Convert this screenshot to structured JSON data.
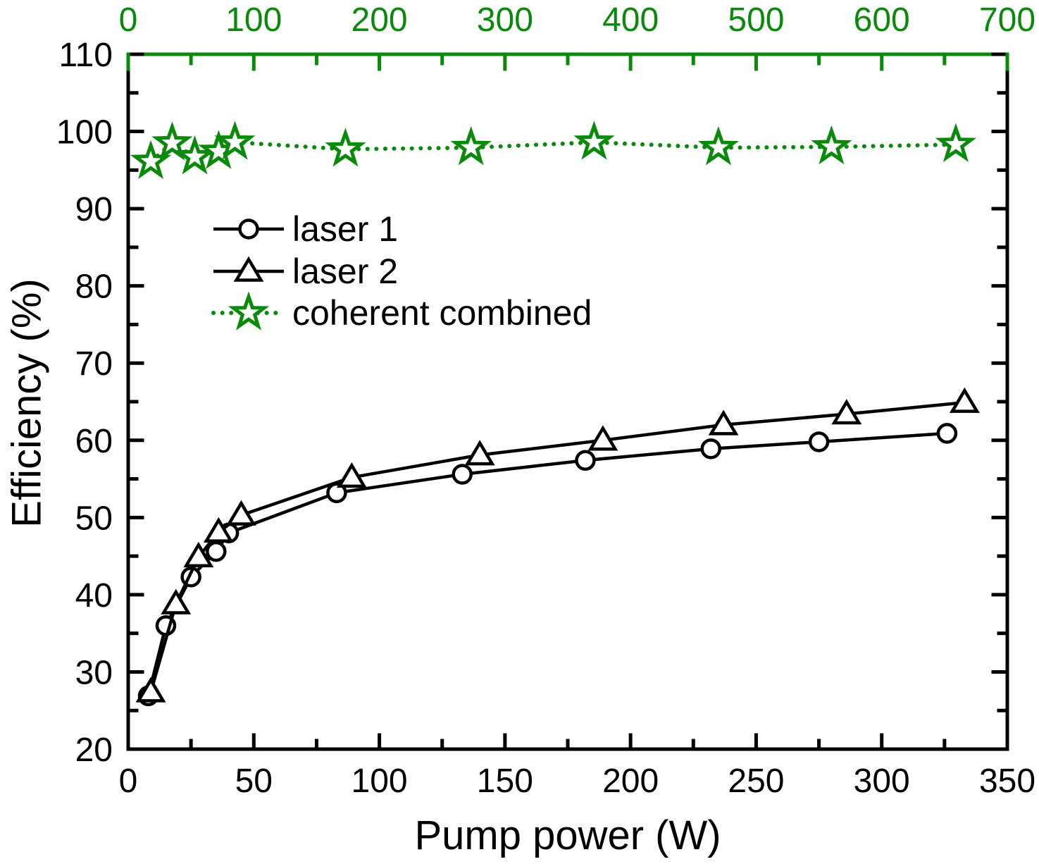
{
  "figure": {
    "background": "#ffffff",
    "black": "#000000",
    "green": "#0a8a0a"
  },
  "chart_data": {
    "type": "line",
    "title": "",
    "xlabel": "Pump power (W)",
    "ylabel": "Efficiency (%)",
    "grid": false,
    "axes": {
      "x_bottom": {
        "min": 0,
        "max": 350,
        "major_step": 50,
        "minor_step": 25,
        "tick_labels": [
          "0",
          "50",
          "100",
          "150",
          "200",
          "250",
          "300",
          "350"
        ],
        "color": "#000000"
      },
      "x_top": {
        "min": 0,
        "max": 700,
        "major_step": 100,
        "minor_step": 50,
        "tick_labels": [
          "0",
          "100",
          "200",
          "300",
          "400",
          "500",
          "600",
          "700"
        ],
        "color": "#0a8a0a"
      },
      "y": {
        "min": 20,
        "max": 110,
        "major_step": 10,
        "minor_step": 5,
        "tick_labels": [
          "20",
          "30",
          "40",
          "50",
          "60",
          "70",
          "80",
          "90",
          "100",
          "110"
        ],
        "color": "#000000"
      }
    },
    "legend": {
      "position": "inside-upper-left",
      "entries": [
        "laser 1",
        "laser 2",
        "coherent combined"
      ]
    },
    "series": [
      {
        "name": "laser 1",
        "axis": "bottom",
        "marker": "circle",
        "line": "solid",
        "color": "#000000",
        "x": [
          8,
          15,
          25,
          35,
          40,
          83,
          133,
          182,
          232,
          275,
          326
        ],
        "y": [
          26.9,
          36.0,
          42.3,
          45.6,
          48.0,
          53.2,
          55.6,
          57.4,
          58.9,
          59.8,
          60.9
        ]
      },
      {
        "name": "laser 2",
        "axis": "bottom",
        "marker": "triangle",
        "line": "solid",
        "color": "#000000",
        "x": [
          9,
          19,
          28,
          36,
          45,
          89,
          140,
          189,
          237,
          286,
          333
        ],
        "y": [
          27.4,
          38.8,
          44.9,
          48.1,
          50.3,
          55.2,
          58.1,
          60.0,
          62.0,
          63.4,
          64.9
        ]
      },
      {
        "name": "coherent combined",
        "axis": "top",
        "marker": "star",
        "line": "dotted",
        "color": "#0a8a0a",
        "x": [
          18,
          35,
          53,
          72,
          85,
          173,
          273,
          371,
          470,
          560,
          659
        ],
        "y": [
          96.1,
          98.5,
          96.7,
          97.4,
          98.6,
          97.7,
          97.9,
          98.6,
          97.9,
          98.0,
          98.3
        ]
      }
    ]
  }
}
